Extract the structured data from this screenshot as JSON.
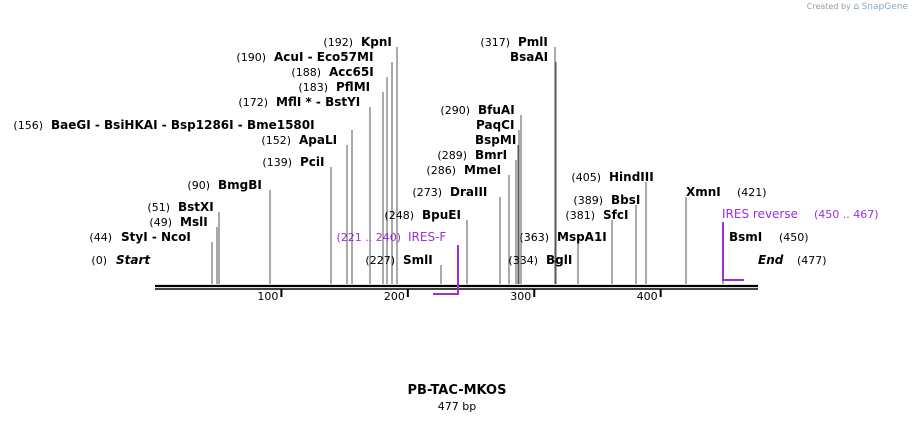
{
  "credit": {
    "prefix": "Created by",
    "logo": "⌂",
    "brand": "SnapGene"
  },
  "map": {
    "name": "PB-TAC-MKOS",
    "length_label": "477 bp",
    "length_bp": 477
  },
  "ticks": [
    "100",
    "200",
    "300",
    "400"
  ],
  "sites": [
    {
      "pos": "(0)",
      "name": "Start",
      "italic": true,
      "bp": 0
    },
    {
      "pos": "(44)",
      "name": "StyI  -  NcoI",
      "bp": 44
    },
    {
      "pos": "(49)",
      "name": "MslI",
      "bp": 49
    },
    {
      "pos": "(51)",
      "name": "BstXI",
      "bp": 51
    },
    {
      "pos": "(90)",
      "name": "BmgBI",
      "bp": 90
    },
    {
      "pos": "(139)",
      "name": "PciI",
      "bp": 139
    },
    {
      "pos": "(152)",
      "name": "ApaLI",
      "bp": 152
    },
    {
      "pos": "(156)",
      "name": "BaeGI  -  BsiHKAI  -  Bsp1286I  -  Bme1580I",
      "bp": 156
    },
    {
      "pos": "(172)",
      "name": "MflI * -  BstYI",
      "bp": 172
    },
    {
      "pos": "(183)",
      "name": "PflMI",
      "bp": 183
    },
    {
      "pos": "(188)",
      "name": "Acc65I",
      "bp": 188
    },
    {
      "pos": "(190)",
      "name": "AcuI  -  Eco57MI",
      "bp": 190
    },
    {
      "pos": "(192)",
      "name": "KpnI",
      "bp": 192
    },
    {
      "pos": "(227)",
      "name": "SmlI",
      "bp": 227
    },
    {
      "pos": "(248)",
      "name": "BpuEI",
      "bp": 248
    },
    {
      "pos": "(273)",
      "name": "DraIII",
      "bp": 273
    },
    {
      "pos": "(286)",
      "name": "MmeI",
      "bp": 286
    },
    {
      "pos": "(289)",
      "name": "BmrI",
      "bp": 289
    },
    {
      "pos": "",
      "name": "BspMI",
      "bp": 290
    },
    {
      "pos": "",
      "name": "PaqCI",
      "bp": 290
    },
    {
      "pos": "(290)",
      "name": "BfuAI",
      "bp": 290
    },
    {
      "pos": "(317)",
      "name": "PmlI",
      "bp": 317
    },
    {
      "pos": "",
      "name": "BsaAI",
      "bp": 317
    },
    {
      "pos": "(334)",
      "name": "BglI",
      "bp": 334
    },
    {
      "pos": "(363)",
      "name": "MspA1I",
      "bp": 363
    },
    {
      "pos": "(381)",
      "name": "SfcI",
      "bp": 381
    },
    {
      "pos": "(389)",
      "name": "BbsI",
      "bp": 389
    },
    {
      "pos": "(405)",
      "name": "HindIII",
      "bp": 405
    },
    {
      "pos": "(421)",
      "name": "XmnI",
      "bp": 421
    },
    {
      "pos": "(450)",
      "name": "BsmI",
      "bp": 450
    },
    {
      "pos": "(477)",
      "name": "End",
      "italic": true,
      "bp": 477
    }
  ],
  "primers": [
    {
      "label": "IRES-F",
      "range": "(221 .. 240)",
      "start": 221,
      "end": 240,
      "color": "#9b30d9"
    },
    {
      "label": "IRES reverse",
      "range": "(450 .. 467)",
      "start": 450,
      "end": 467,
      "color": "#9b30d9"
    }
  ]
}
